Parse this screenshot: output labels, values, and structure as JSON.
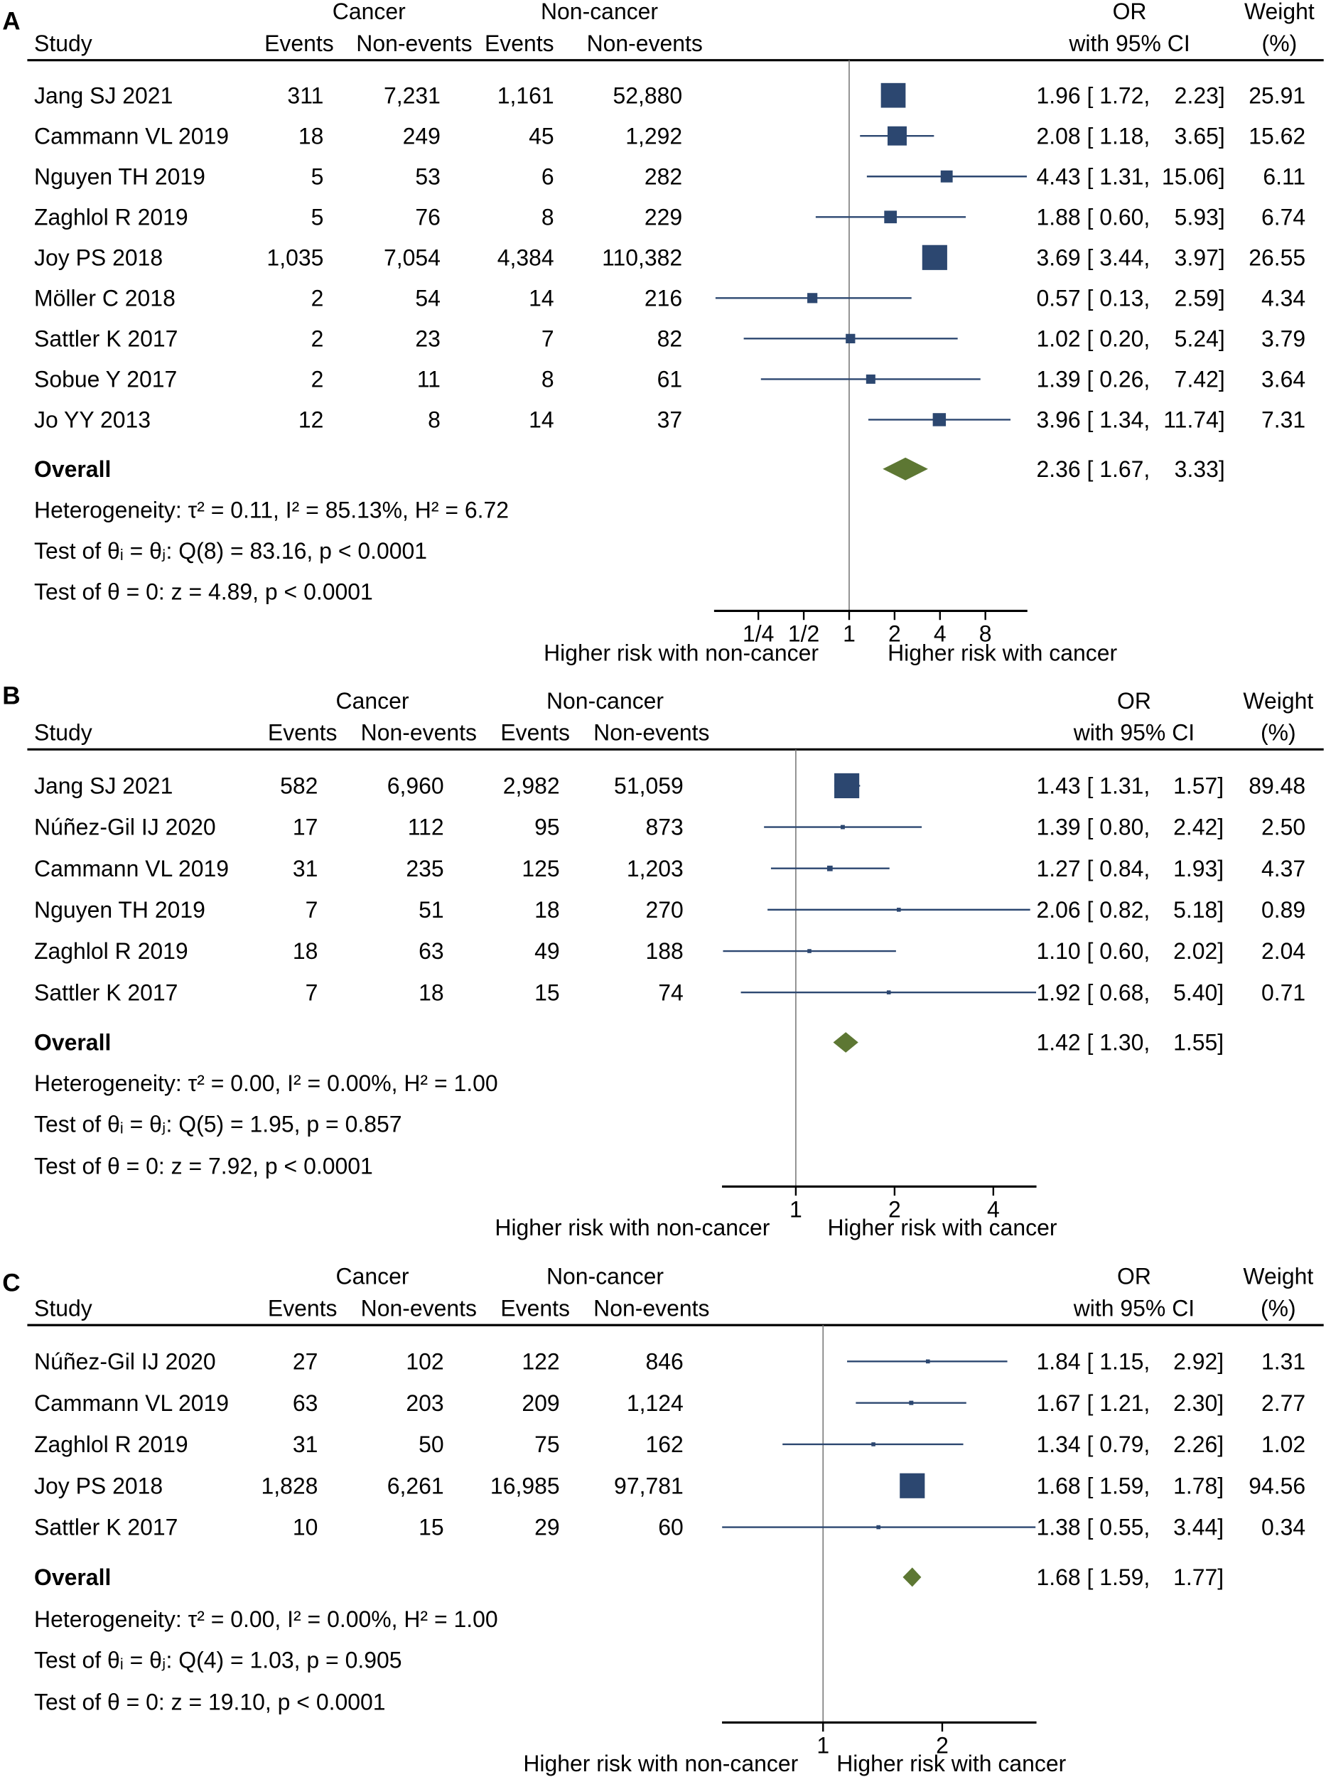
{
  "colors": {
    "marker": "#2c4770",
    "ci_line": "#2c4770",
    "diamond": "#5d7733",
    "axis": "#000000",
    "ref_line": "#7a7a7a"
  },
  "headers": {
    "study": "Study",
    "cancer": "Cancer",
    "non_cancer": "Non-cancer",
    "events": "Events",
    "non_events": "Non-events",
    "or": "OR",
    "or_ci": "with 95% CI",
    "weight": "Weight",
    "weight_unit": "(%)"
  },
  "chart_data": [
    {
      "type": "forest",
      "panel": "A",
      "xscale": "log2",
      "xlim": [
        0.127,
        15.2
      ],
      "ticks": [
        {
          "v": 0.25,
          "label": "1/4"
        },
        {
          "v": 0.5,
          "label": "1/2"
        },
        {
          "v": 1,
          "label": "1"
        },
        {
          "v": 2,
          "label": "2"
        },
        {
          "v": 4,
          "label": "4"
        },
        {
          "v": 8,
          "label": "8"
        }
      ],
      "left_label": "Higher risk with non-cancer",
      "right_label": "Higher risk with cancer",
      "studies": [
        {
          "study": "Jang SJ 2021",
          "ce": "311",
          "cn": "7,231",
          "ne": "1,161",
          "nn": "52,880",
          "or": 1.96,
          "lo": 1.72,
          "hi": 2.23,
          "weight": 25.91
        },
        {
          "study": "Cammann VL 2019",
          "ce": "18",
          "cn": "249",
          "ne": "45",
          "nn": "1,292",
          "or": 2.08,
          "lo": 1.18,
          "hi": 3.65,
          "weight": 15.62
        },
        {
          "study": "Nguyen TH 2019",
          "ce": "5",
          "cn": "53",
          "ne": "6",
          "nn": "282",
          "or": 4.43,
          "lo": 1.31,
          "hi": 15.06,
          "weight": 6.11
        },
        {
          "study": "Zaghlol  R 2019",
          "ce": "5",
          "cn": "76",
          "ne": "8",
          "nn": "229",
          "or": 1.88,
          "lo": 0.6,
          "hi": 5.93,
          "weight": 6.74
        },
        {
          "study": "Joy PS 2018",
          "ce": "1,035",
          "cn": "7,054",
          "ne": "4,384",
          "nn": "110,382",
          "or": 3.69,
          "lo": 3.44,
          "hi": 3.97,
          "weight": 26.55
        },
        {
          "study": "Möller C 2018",
          "ce": "2",
          "cn": "54",
          "ne": "14",
          "nn": "216",
          "or": 0.57,
          "lo": 0.13,
          "hi": 2.59,
          "weight": 4.34
        },
        {
          "study": "Sattler K 2017",
          "ce": "2",
          "cn": "23",
          "ne": "7",
          "nn": "82",
          "or": 1.02,
          "lo": 0.2,
          "hi": 5.24,
          "weight": 3.79
        },
        {
          "study": "Sobue Y 2017",
          "ce": "2",
          "cn": "11",
          "ne": "8",
          "nn": "61",
          "or": 1.39,
          "lo": 0.26,
          "hi": 7.42,
          "weight": 3.64
        },
        {
          "study": "Jo YY 2013",
          "ce": "12",
          "cn": "8",
          "ne": "14",
          "nn": "37",
          "or": 3.96,
          "lo": 1.34,
          "hi": 11.74,
          "weight": 7.31
        }
      ],
      "overall": {
        "label": "Overall",
        "or": 2.36,
        "lo": 1.67,
        "hi": 3.33
      },
      "stats": [
        "Heterogeneity: τ² = 0.11, I² = 85.13%, H² = 6.72",
        "Test of θᵢ = θⱼ: Q(8) = 83.16, p < 0.0001",
        "Test of θ = 0: z = 4.89, p < 0.0001"
      ]
    },
    {
      "type": "forest",
      "panel": "B",
      "xscale": "log2",
      "xlim": [
        0.596,
        5.41
      ],
      "ticks": [
        {
          "v": 1,
          "label": "1"
        },
        {
          "v": 2,
          "label": "2"
        },
        {
          "v": 4,
          "label": "4"
        }
      ],
      "left_label": "Higher risk with non-cancer",
      "right_label": "Higher risk with cancer",
      "studies": [
        {
          "study": "Jang SJ 2021",
          "ce": "582",
          "cn": "6,960",
          "ne": "2,982",
          "nn": "51,059",
          "or": 1.43,
          "lo": 1.31,
          "hi": 1.57,
          "weight": 89.48
        },
        {
          "study": "Núñez-Gil IJ 2020",
          "ce": "17",
          "cn": "112",
          "ne": "95",
          "nn": "873",
          "or": 1.39,
          "lo": 0.8,
          "hi": 2.42,
          "weight": 2.5
        },
        {
          "study": "Cammann VL 2019",
          "ce": "31",
          "cn": "235",
          "ne": "125",
          "nn": "1,203",
          "or": 1.27,
          "lo": 0.84,
          "hi": 1.93,
          "weight": 4.37
        },
        {
          "study": "Nguyen TH 2019",
          "ce": "7",
          "cn": "51",
          "ne": "18",
          "nn": "270",
          "or": 2.06,
          "lo": 0.82,
          "hi": 5.18,
          "weight": 0.89
        },
        {
          "study": "Zaghlol  R 2019",
          "ce": "18",
          "cn": "63",
          "ne": "49",
          "nn": "188",
          "or": 1.1,
          "lo": 0.6,
          "hi": 2.02,
          "weight": 2.04
        },
        {
          "study": "Sattler K 2017",
          "ce": "7",
          "cn": "18",
          "ne": "15",
          "nn": "74",
          "or": 1.92,
          "lo": 0.68,
          "hi": 5.4,
          "weight": 0.71
        }
      ],
      "overall": {
        "label": "Overall",
        "or": 1.42,
        "lo": 1.3,
        "hi": 1.55
      },
      "stats": [
        "Heterogeneity: τ² = 0.00, I² = 0.00%, H² = 1.00",
        "Test of θᵢ = θⱼ: Q(5) = 1.95, p = 0.857",
        "Test of θ = 0: z = 7.92, p < 0.0001"
      ]
    },
    {
      "type": "forest",
      "panel": "C",
      "xscale": "log2",
      "xlim": [
        0.556,
        3.46
      ],
      "ticks": [
        {
          "v": 1,
          "label": "1"
        },
        {
          "v": 2,
          "label": "2"
        }
      ],
      "left_label": "Higher risk with non-cancer",
      "right_label": "Higher risk with cancer",
      "studies": [
        {
          "study": "Núñez-Gil IJ 2020",
          "ce": "27",
          "cn": "102",
          "ne": "122",
          "nn": "846",
          "or": 1.84,
          "lo": 1.15,
          "hi": 2.92,
          "weight": 1.31
        },
        {
          "study": "Cammann VL 2019",
          "ce": "63",
          "cn": "203",
          "ne": "209",
          "nn": "1,124",
          "or": 1.67,
          "lo": 1.21,
          "hi": 2.3,
          "weight": 2.77
        },
        {
          "study": "Zaghlol  R 2019",
          "ce": "31",
          "cn": "50",
          "ne": "75",
          "nn": "162",
          "or": 1.34,
          "lo": 0.79,
          "hi": 2.26,
          "weight": 1.02
        },
        {
          "study": "Joy PS 2018",
          "ce": "1,828",
          "cn": "6,261",
          "ne": "16,985",
          "nn": "97,781",
          "or": 1.68,
          "lo": 1.59,
          "hi": 1.78,
          "weight": 94.56
        },
        {
          "study": "Sattler K 2017",
          "ce": "10",
          "cn": "15",
          "ne": "29",
          "nn": "60",
          "or": 1.38,
          "lo": 0.55,
          "hi": 3.44,
          "weight": 0.34
        }
      ],
      "overall": {
        "label": "Overall",
        "or": 1.68,
        "lo": 1.59,
        "hi": 1.77
      },
      "stats": [
        "Heterogeneity: τ² = 0.00, I² = 0.00%, H² = 1.00",
        "Test of θᵢ = θⱼ: Q(4) = 1.03, p = 0.905",
        "Test of θ = 0: z = 19.10, p < 0.0001"
      ]
    }
  ]
}
